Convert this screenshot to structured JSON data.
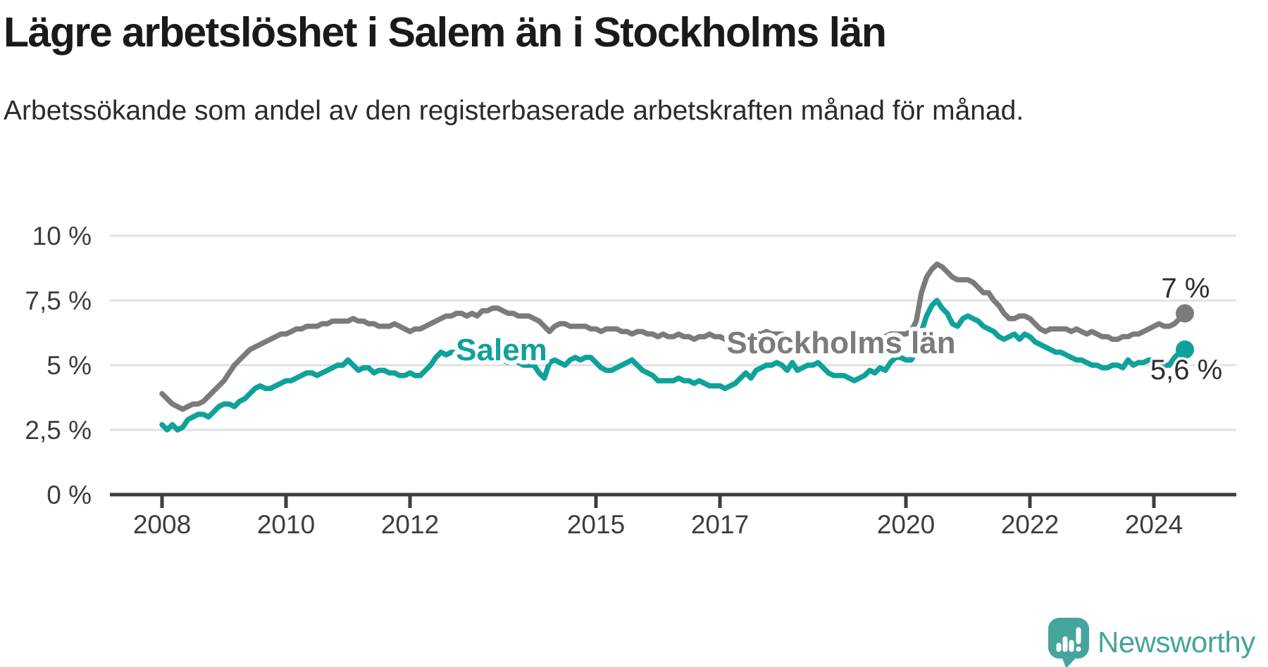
{
  "header": {
    "title": "Lägre arbetslöshet i Salem än i Stockholms län",
    "subtitle": "Arbetssökande som andel av den registerbaserade arbetskraften månad för månad."
  },
  "chart_data": {
    "type": "line",
    "frequency": "monthly",
    "x_start": "2008-01",
    "x_end": "2024-07",
    "ylim": [
      0,
      10
    ],
    "grid": "horizontal",
    "y_ticks": [
      {
        "value": 0,
        "label": "0 %"
      },
      {
        "value": 2.5,
        "label": "2,5 %"
      },
      {
        "value": 5,
        "label": "5 %"
      },
      {
        "value": 7.5,
        "label": "7,5 %"
      },
      {
        "value": 10,
        "label": "10 %"
      }
    ],
    "x_ticks": [
      {
        "year": 2008,
        "label": "2008"
      },
      {
        "year": 2010,
        "label": "2010"
      },
      {
        "year": 2012,
        "label": "2012"
      },
      {
        "year": 2015,
        "label": "2015"
      },
      {
        "year": 2017,
        "label": "2017"
      },
      {
        "year": 2020,
        "label": "2020"
      },
      {
        "year": 2022,
        "label": "2022"
      },
      {
        "year": 2024,
        "label": "2024"
      }
    ],
    "series": [
      {
        "name": "Salem",
        "color": "#0fa29a",
        "end_value": 5.6,
        "end_label": "5,6 %",
        "values": [
          2.7,
          2.5,
          2.7,
          2.5,
          2.6,
          2.9,
          3.0,
          3.1,
          3.1,
          3.0,
          3.2,
          3.4,
          3.5,
          3.5,
          3.4,
          3.6,
          3.7,
          3.9,
          4.1,
          4.2,
          4.1,
          4.1,
          4.2,
          4.3,
          4.4,
          4.4,
          4.5,
          4.6,
          4.7,
          4.7,
          4.6,
          4.7,
          4.8,
          4.9,
          5.0,
          5.0,
          5.2,
          5.0,
          4.8,
          4.9,
          4.9,
          4.7,
          4.8,
          4.8,
          4.7,
          4.7,
          4.6,
          4.6,
          4.7,
          4.6,
          4.6,
          4.8,
          5.0,
          5.3,
          5.5,
          5.4,
          5.5,
          5.5,
          5.4,
          5.5,
          5.5,
          5.4,
          5.5,
          5.3,
          5.2,
          5.3,
          5.2,
          5.1,
          5.2,
          5.1,
          5.0,
          5.0,
          5.0,
          4.7,
          4.5,
          5.1,
          5.2,
          5.1,
          5.0,
          5.2,
          5.3,
          5.2,
          5.3,
          5.3,
          5.1,
          4.9,
          4.8,
          4.8,
          4.9,
          5.0,
          5.1,
          5.2,
          5.0,
          4.8,
          4.7,
          4.6,
          4.4,
          4.4,
          4.4,
          4.4,
          4.5,
          4.4,
          4.4,
          4.3,
          4.4,
          4.3,
          4.2,
          4.2,
          4.2,
          4.1,
          4.2,
          4.3,
          4.5,
          4.7,
          4.5,
          4.8,
          4.9,
          5.0,
          5.0,
          5.1,
          5.0,
          4.8,
          5.1,
          4.8,
          4.9,
          5.0,
          5.0,
          5.1,
          4.9,
          4.7,
          4.6,
          4.6,
          4.6,
          4.5,
          4.4,
          4.5,
          4.6,
          4.8,
          4.7,
          4.9,
          4.8,
          5.1,
          5.3,
          5.3,
          5.2,
          5.2,
          5.5,
          6.3,
          6.9,
          7.3,
          7.5,
          7.2,
          7.0,
          6.6,
          6.5,
          6.8,
          6.9,
          6.8,
          6.7,
          6.5,
          6.4,
          6.3,
          6.1,
          6.0,
          6.1,
          6.2,
          6.0,
          6.2,
          6.1,
          5.9,
          5.8,
          5.7,
          5.6,
          5.5,
          5.5,
          5.4,
          5.3,
          5.2,
          5.2,
          5.1,
          5.0,
          5.0,
          4.9,
          4.9,
          5.0,
          5.0,
          4.9,
          5.2,
          5.0,
          5.1,
          5.1,
          5.2,
          5.2,
          5.1,
          5.0,
          5.0,
          5.3,
          5.5,
          5.6
        ]
      },
      {
        "name": "Stockholms län",
        "color": "#7b7b7b",
        "end_value": 7.0,
        "end_label": "7 %",
        "values": [
          3.9,
          3.7,
          3.5,
          3.4,
          3.3,
          3.4,
          3.5,
          3.5,
          3.6,
          3.8,
          4.0,
          4.2,
          4.4,
          4.7,
          5.0,
          5.2,
          5.4,
          5.6,
          5.7,
          5.8,
          5.9,
          6.0,
          6.1,
          6.2,
          6.2,
          6.3,
          6.4,
          6.4,
          6.5,
          6.5,
          6.5,
          6.6,
          6.6,
          6.7,
          6.7,
          6.7,
          6.7,
          6.8,
          6.7,
          6.7,
          6.6,
          6.6,
          6.5,
          6.5,
          6.5,
          6.6,
          6.5,
          6.4,
          6.3,
          6.4,
          6.4,
          6.5,
          6.6,
          6.7,
          6.8,
          6.9,
          6.9,
          7.0,
          7.0,
          6.9,
          7.0,
          6.9,
          7.1,
          7.1,
          7.2,
          7.2,
          7.1,
          7.0,
          7.0,
          6.9,
          6.9,
          6.9,
          6.8,
          6.7,
          6.5,
          6.3,
          6.5,
          6.6,
          6.6,
          6.5,
          6.5,
          6.5,
          6.5,
          6.4,
          6.4,
          6.3,
          6.4,
          6.4,
          6.4,
          6.3,
          6.3,
          6.2,
          6.3,
          6.3,
          6.2,
          6.2,
          6.1,
          6.2,
          6.1,
          6.1,
          6.2,
          6.1,
          6.1,
          6.0,
          6.1,
          6.1,
          6.2,
          6.1,
          6.1,
          6.0,
          6.1,
          6.1,
          6.2,
          6.2,
          6.1,
          6.2,
          6.2,
          6.3,
          6.2,
          6.2,
          6.2,
          6.1,
          6.1,
          6.0,
          6.0,
          6.1,
          6.1,
          6.2,
          6.0,
          5.9,
          5.9,
          5.9,
          5.9,
          5.9,
          5.8,
          5.9,
          6.0,
          6.1,
          6.0,
          6.1,
          6.1,
          6.2,
          6.2,
          6.2,
          6.2,
          6.3,
          6.7,
          7.8,
          8.4,
          8.7,
          8.9,
          8.8,
          8.6,
          8.4,
          8.3,
          8.3,
          8.3,
          8.2,
          8.0,
          7.8,
          7.8,
          7.5,
          7.3,
          7.0,
          6.8,
          6.8,
          6.9,
          6.9,
          6.8,
          6.6,
          6.4,
          6.3,
          6.4,
          6.4,
          6.4,
          6.4,
          6.3,
          6.4,
          6.3,
          6.2,
          6.3,
          6.2,
          6.1,
          6.1,
          6.0,
          6.0,
          6.1,
          6.1,
          6.2,
          6.2,
          6.3,
          6.4,
          6.5,
          6.6,
          6.5,
          6.5,
          6.6,
          6.8,
          7.0
        ]
      }
    ]
  },
  "footer": {
    "brand": "Newsworthy"
  },
  "colors": {
    "salem_line": "#0fa29a",
    "stockholm_line": "#7b7b7b",
    "gridline": "#e0e0e0",
    "axis": "#3d3d3d",
    "value_label": "#2d2d2d",
    "brand_teal": "#46a49d"
  }
}
